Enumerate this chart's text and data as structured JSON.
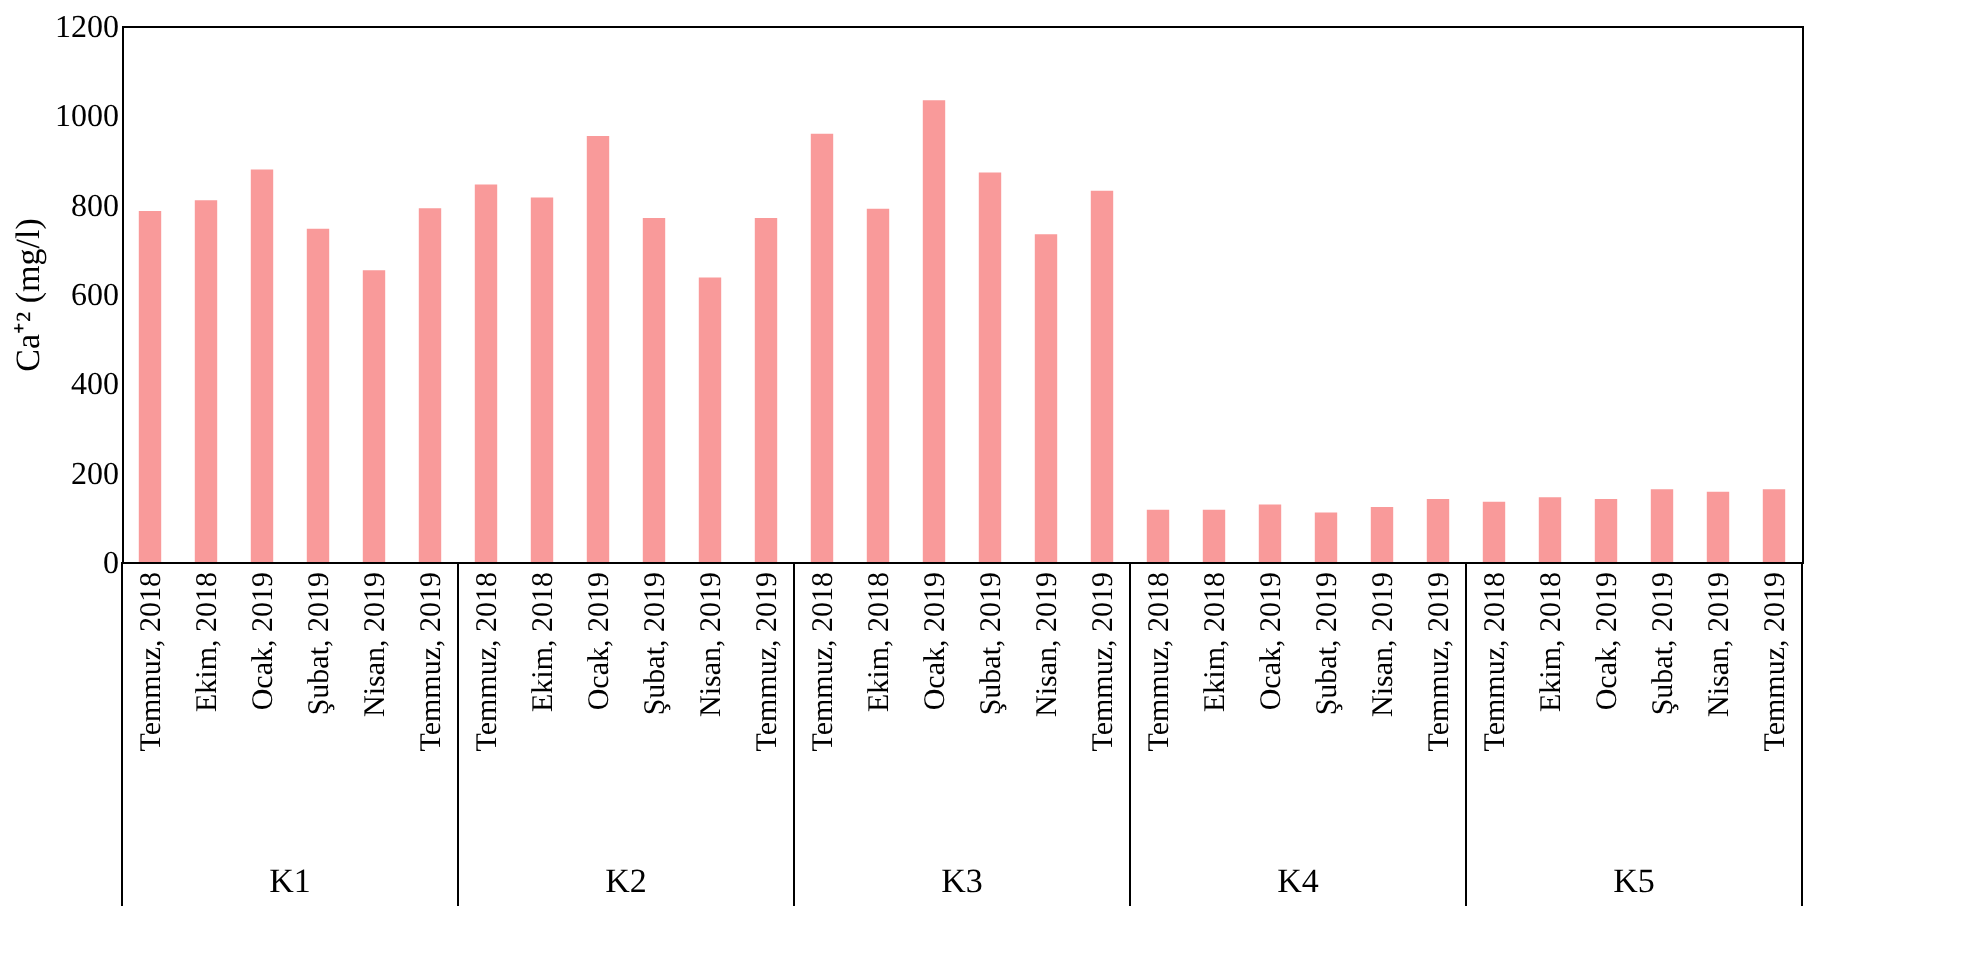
{
  "chart_data": {
    "type": "bar",
    "ylabel": "Ca⁺² (mg/l)",
    "categories": [
      "Temmuz, 2018",
      "Ekim, 2018",
      "Ocak, 2019",
      "Şubat, 2019",
      "Nisan, 2019",
      "Temmuz, 2019",
      "Temmuz, 2018",
      "Ekim, 2018",
      "Ocak, 2019",
      "Şubat, 2019",
      "Nisan, 2019",
      "Temmuz, 2019",
      "Temmuz, 2018",
      "Ekim, 2018",
      "Ocak, 2019",
      "Şubat, 2019",
      "Nisan, 2019",
      "Temmuz, 2019",
      "Temmuz, 2018",
      "Ekim, 2018",
      "Ocak, 2019",
      "Şubat, 2019",
      "Nisan, 2019",
      "Temmuz, 2019",
      "Temmuz, 2018",
      "Ekim, 2018",
      "Ocak, 2019",
      "Şubat, 2019",
      "Nisan, 2019",
      "Temmuz, 2019"
    ],
    "values": [
      786,
      810,
      879,
      746,
      653,
      792,
      845,
      816,
      954,
      770,
      637,
      770,
      959,
      791,
      1034,
      872,
      734,
      831,
      117,
      117,
      129,
      111,
      123,
      141,
      135,
      145,
      141,
      163,
      157,
      163
    ],
    "color": "#f99a9a",
    "annotations": [
      "K1",
      "K2",
      "K3",
      "K4",
      "K5"
    ],
    "ylim": [
      0,
      1200
    ],
    "yticks": [
      0,
      200,
      400,
      600,
      800,
      1000,
      1200
    ],
    "grid": false
  }
}
